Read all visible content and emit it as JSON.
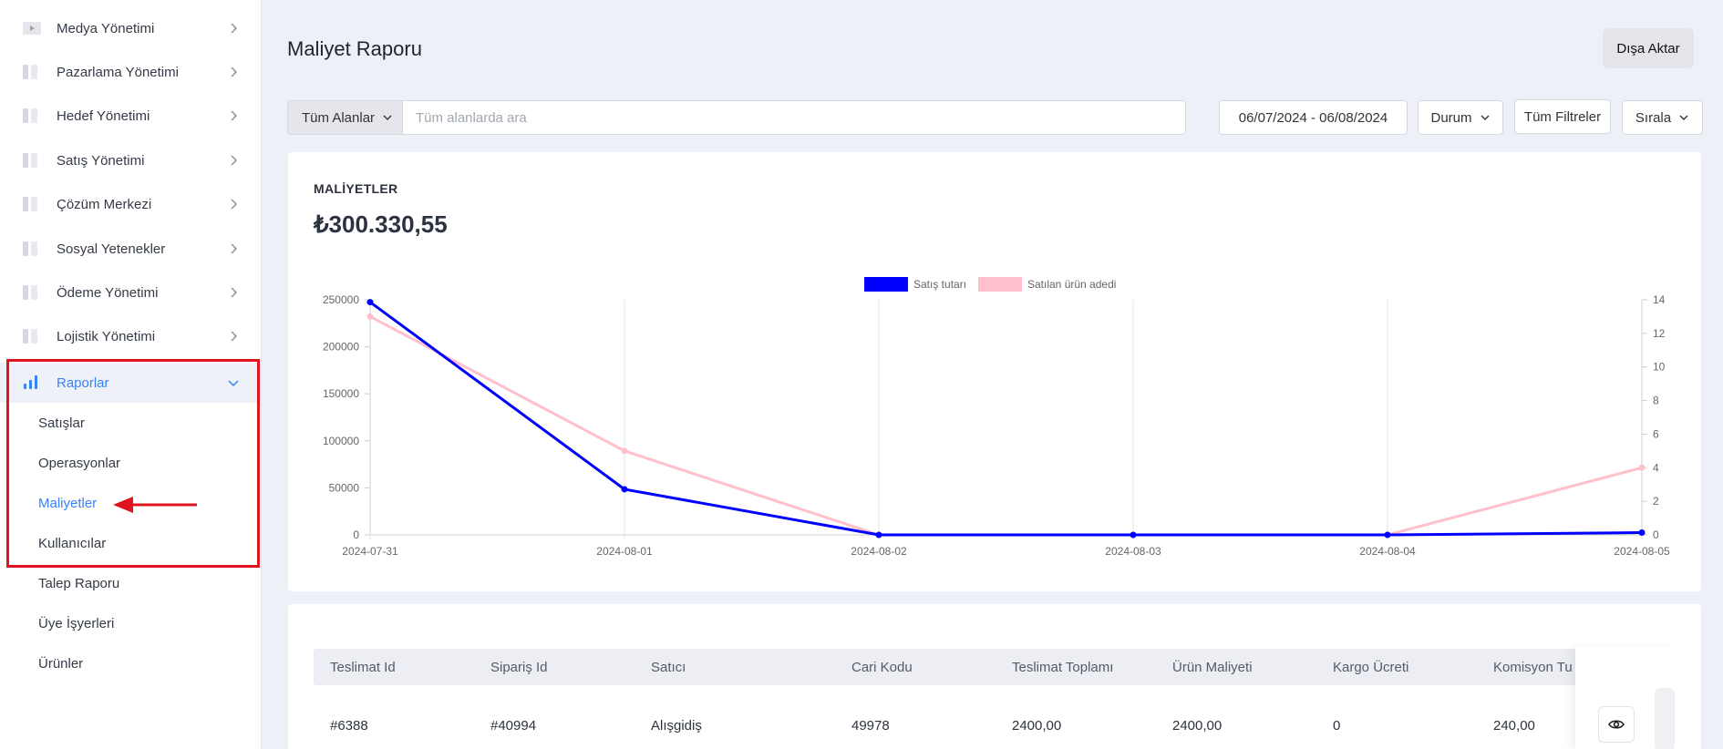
{
  "sidebar": {
    "items": [
      {
        "label": "Medya Yönetimi"
      },
      {
        "label": "Pazarlama Yönetimi"
      },
      {
        "label": "Hedef Yönetimi"
      },
      {
        "label": "Satış Yönetimi"
      },
      {
        "label": "Çözüm Merkezi"
      },
      {
        "label": "Sosyal Yetenekler"
      },
      {
        "label": "Ödeme Yönetimi"
      },
      {
        "label": "Lojistik Yönetimi"
      },
      {
        "label": "Raporlar"
      }
    ],
    "sub_items": [
      {
        "label": "Satışlar"
      },
      {
        "label": "Operasyonlar"
      },
      {
        "label": "Maliyetler"
      },
      {
        "label": "Kullanıcılar"
      },
      {
        "label": "Talep Raporu"
      },
      {
        "label": "Üye İşyerleri"
      },
      {
        "label": "Ürünler"
      }
    ],
    "accent_color": "#3b82f6",
    "highlight_color": "#e0141e"
  },
  "header": {
    "title": "Maliyet Raporu",
    "export_label": "Dışa Aktar"
  },
  "filters": {
    "field_select": "Tüm Alanlar",
    "search_placeholder": "Tüm alanlarda ara",
    "date_range": "06/07/2024 - 06/08/2024",
    "status_label": "Durum",
    "all_filters_label": "Tüm Filtreler",
    "sort_label": "Sırala"
  },
  "summary": {
    "label": "MALİYETLER",
    "value": "₺300.330,55"
  },
  "chart_data": {
    "type": "line",
    "x": [
      "2024-07-31",
      "2024-08-01",
      "2024-08-02",
      "2024-08-03",
      "2024-08-04",
      "2024-08-05"
    ],
    "series": [
      {
        "name": "Satış tutarı",
        "axis": "left",
        "color": "#0000ff",
        "values": [
          247500,
          48500,
          0,
          0,
          0,
          2400
        ]
      },
      {
        "name": "Satılan ürün adedi",
        "axis": "right",
        "color": "#ffc0cb",
        "values": [
          13,
          5,
          0,
          0,
          0,
          4
        ]
      }
    ],
    "y_left": {
      "ylim": [
        0,
        250000
      ],
      "ticks": [
        "250000",
        "200000",
        "150000",
        "100000",
        "50000",
        "0"
      ]
    },
    "y_right": {
      "ylim": [
        0,
        14
      ],
      "ticks": [
        "14",
        "12",
        "10",
        "8",
        "6",
        "4",
        "2",
        "0"
      ]
    },
    "grid": "vertical",
    "legend": "top-center"
  },
  "table": {
    "columns": [
      "Teslimat Id",
      "Sipariş Id",
      "Satıcı",
      "Cari Kodu",
      "Teslimat Toplamı",
      "Ürün Maliyeti",
      "Kargo Ücreti",
      "Komisyon Tu"
    ],
    "rows": [
      [
        "#6388",
        "#40994",
        "Alışgidiş",
        "49978",
        "2400,00",
        "2400,00",
        "0",
        "240,00"
      ]
    ]
  }
}
